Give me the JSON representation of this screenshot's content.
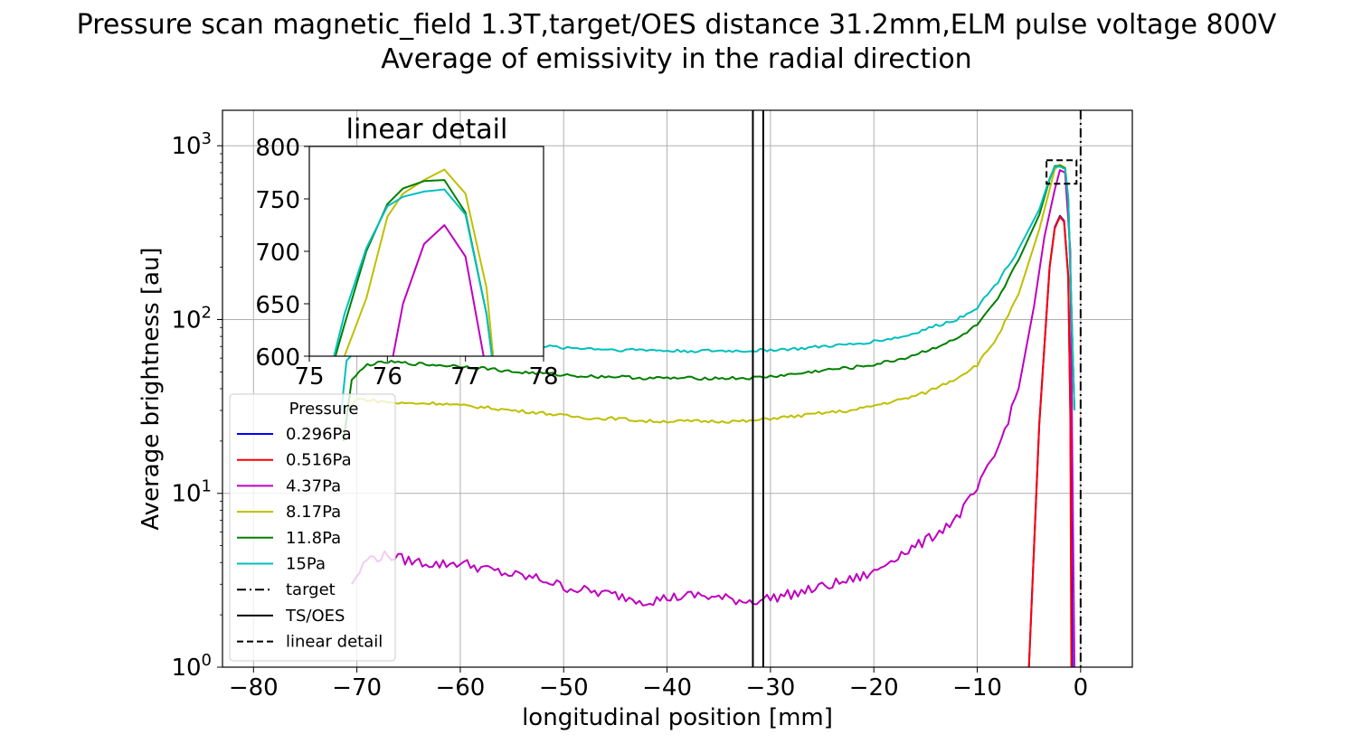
{
  "chart_data": [
    {
      "type": "line",
      "title": "Pressure scan magnetic_field 1.3T,target/OES distance 31.2mm,ELM pulse voltage 800V",
      "subtitle": "Average of emissivity in the radial direction",
      "xlabel": "longitudinal position [mm]",
      "ylabel": "Average brightness [au]",
      "xlim": [
        -83,
        5
      ],
      "ylim": [
        1,
        1600
      ],
      "yscale": "log",
      "grid": true,
      "xticks": [
        -80,
        -70,
        -60,
        -50,
        -40,
        -30,
        -20,
        -10,
        0
      ],
      "xtick_labels": [
        "−80",
        "−70",
        "−60",
        "−50",
        "−40",
        "−30",
        "−20",
        "−10",
        "0"
      ],
      "yticks": [
        {
          "value": 1,
          "base": "10",
          "exp": "0"
        },
        {
          "value": 10,
          "base": "10",
          "exp": "1"
        },
        {
          "value": 100,
          "base": "10",
          "exp": "2"
        },
        {
          "value": 1000,
          "base": "10",
          "exp": "3"
        }
      ],
      "legend": {
        "title": "Pressure",
        "position": "lower-left",
        "entries": [
          {
            "label": "0.296Pa",
            "color": "#0000ff",
            "style": "solid"
          },
          {
            "label": "0.516Pa",
            "color": "#ff0000",
            "style": "solid"
          },
          {
            "label": "4.37Pa",
            "color": "#bf00bf",
            "style": "solid"
          },
          {
            "label": "8.17Pa",
            "color": "#bfbf00",
            "style": "solid"
          },
          {
            "label": "11.8Pa",
            "color": "#008000",
            "style": "solid"
          },
          {
            "label": "15Pa",
            "color": "#00bfbf",
            "style": "solid"
          },
          {
            "label": "target",
            "color": "#000000",
            "style": "dashdot"
          },
          {
            "label": "TS/OES",
            "color": "#000000",
            "style": "solid"
          },
          {
            "label": "linear detail",
            "color": "#000000",
            "style": "dashed"
          }
        ]
      },
      "series": [
        {
          "name": "0.296Pa",
          "color": "#0000ff",
          "x": [
            -5.0,
            -4.0,
            -3.0,
            -2.5,
            -2.0,
            -1.6,
            -1.2,
            -1.0,
            -0.8
          ],
          "y": [
            1.0,
            25,
            200,
            340,
            395,
            370,
            180,
            30,
            1.0
          ]
        },
        {
          "name": "0.516Pa",
          "color": "#ff0000",
          "x": [
            -5.0,
            -4.0,
            -3.0,
            -2.5,
            -2.0,
            -1.6,
            -1.2,
            -1.0,
            -0.9
          ],
          "y": [
            1.0,
            25,
            200,
            335,
            390,
            365,
            175,
            30,
            1.0
          ]
        },
        {
          "name": "4.37Pa",
          "color": "#bf00bf",
          "x": [
            -70.5,
            -69,
            -67,
            -65,
            -62,
            -60,
            -57,
            -55,
            -52,
            -50,
            -47,
            -45,
            -42,
            -40,
            -37,
            -35,
            -32,
            -30,
            -27,
            -25,
            -22,
            -20,
            -18,
            -15,
            -12,
            -10,
            -8,
            -6,
            -4.5,
            -3.5,
            -2.5,
            -2.0,
            -1.5,
            -1.0,
            -0.6
          ],
          "y": [
            3.0,
            4.2,
            4.4,
            4.1,
            3.9,
            4.0,
            3.6,
            3.4,
            3.2,
            2.9,
            2.7,
            2.6,
            2.4,
            2.5,
            2.6,
            2.5,
            2.4,
            2.5,
            2.7,
            2.9,
            3.2,
            3.5,
            4.3,
            5.3,
            7.2,
            10.5,
            18,
            40,
            120,
            300,
            560,
            725,
            700,
            250,
            1.0
          ]
        },
        {
          "name": "8.17Pa",
          "color": "#bfbf00",
          "x": [
            -71,
            -70,
            -68,
            -66,
            -64,
            -62,
            -60,
            -57,
            -55,
            -52,
            -50,
            -47,
            -45,
            -42,
            -40,
            -37,
            -35,
            -32,
            -30,
            -27,
            -25,
            -22,
            -20,
            -17,
            -15,
            -12,
            -10,
            -8,
            -6,
            -4,
            -3.0,
            -2.5,
            -2.0,
            -1.5,
            -1.2,
            -0.6
          ],
          "y": [
            30,
            35,
            34,
            33,
            33,
            33,
            32,
            31,
            30,
            29,
            28,
            27,
            27,
            26,
            26,
            26,
            26,
            26,
            27,
            28,
            29,
            30,
            32,
            35,
            38,
            46,
            55,
            80,
            140,
            330,
            560,
            732,
            778,
            750,
            500,
            30
          ]
        },
        {
          "name": "11.8Pa",
          "color": "#008000",
          "x": [
            -71.3,
            -70.5,
            -69,
            -67,
            -65,
            -63,
            -60,
            -57,
            -55,
            -52,
            -50,
            -47,
            -45,
            -42,
            -40,
            -37,
            -35,
            -32,
            -30,
            -27,
            -25,
            -22,
            -20,
            -17,
            -15,
            -12,
            -10,
            -8,
            -6,
            -4,
            -3.0,
            -2.5,
            -2.0,
            -1.5,
            -1.2,
            -0.6
          ],
          "y": [
            20,
            45,
            55,
            57,
            56,
            55,
            54,
            52,
            50,
            49,
            48,
            47,
            47,
            46,
            46,
            46,
            46,
            46,
            47,
            49,
            51,
            53,
            55,
            60,
            66,
            77,
            93,
            130,
            220,
            400,
            640,
            765,
            767,
            740,
            500,
            30
          ]
        },
        {
          "name": "15Pa",
          "color": "#00bfbf",
          "x": [
            -71.5,
            -71,
            -69.5,
            -68,
            -66,
            -64,
            -62,
            -60,
            -57,
            -55,
            -52,
            -50,
            -47,
            -45,
            -42,
            -40,
            -37,
            -35,
            -32,
            -30,
            -27,
            -25,
            -22,
            -20,
            -17,
            -15,
            -12,
            -10,
            -8,
            -6,
            -4,
            -3.0,
            -2.5,
            -2.0,
            -1.5,
            -1.2,
            -0.6
          ],
          "y": [
            30,
            58,
            72,
            76,
            77,
            76,
            75,
            74,
            72,
            71,
            70,
            69,
            68,
            67,
            67,
            66,
            66,
            66,
            66,
            67,
            68,
            70,
            72,
            75,
            80,
            88,
            100,
            118,
            165,
            255,
            430,
            650,
            757,
            759,
            735,
            500,
            30
          ]
        }
      ],
      "vlines": [
        {
          "name": "target",
          "x": 0,
          "style": "dashdot",
          "color": "#000000"
        },
        {
          "name": "TS/OES",
          "x": -31.7,
          "style": "solid",
          "color": "#000000"
        },
        {
          "name": "TS/OES",
          "x": -30.7,
          "style": "solid",
          "color": "#000000"
        }
      ],
      "detail_box": {
        "name": "linear detail",
        "x": [
          -3.3,
          -0.4
        ],
        "y": [
          605,
          825
        ]
      }
    },
    {
      "type": "line",
      "title": "linear detail",
      "xlim": [
        75,
        78
      ],
      "ylim": [
        600,
        800
      ],
      "yscale": "linear",
      "grid": false,
      "xticks": [
        75,
        76,
        77,
        78
      ],
      "yticks": [
        600,
        650,
        700,
        750,
        800
      ],
      "series": [
        {
          "name": "4.37Pa",
          "color": "#bf00bf",
          "x": [
            75.97,
            76.2,
            76.47,
            76.73,
            77.0,
            77.33
          ],
          "y": [
            560,
            650,
            707,
            725,
            695,
            560
          ]
        },
        {
          "name": "8.17Pa",
          "color": "#bfbf00",
          "x": [
            75.25,
            75.45,
            75.73,
            76.0,
            76.2,
            76.47,
            76.73,
            77.0,
            77.27,
            77.4
          ],
          "y": [
            565,
            600,
            655,
            733,
            755,
            768,
            778,
            755,
            665,
            565
          ]
        },
        {
          "name": "11.8Pa",
          "color": "#008000",
          "x": [
            75.2,
            75.45,
            75.73,
            76.0,
            76.2,
            76.47,
            76.73,
            77.0,
            77.27,
            77.4
          ],
          "y": [
            565,
            630,
            700,
            745,
            760,
            767,
            768,
            737,
            640,
            565
          ]
        },
        {
          "name": "15Pa",
          "color": "#00bfbf",
          "x": [
            75.2,
            75.45,
            75.73,
            76.0,
            76.2,
            76.47,
            76.73,
            77.0,
            77.27,
            77.4
          ],
          "y": [
            565,
            640,
            703,
            743,
            752,
            757,
            759,
            735,
            640,
            565
          ]
        }
      ]
    }
  ]
}
